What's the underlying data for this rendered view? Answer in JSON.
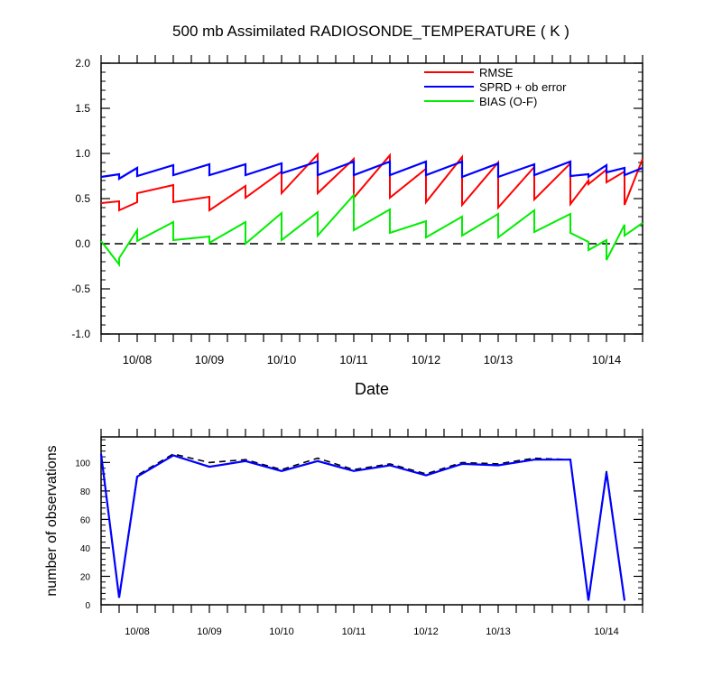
{
  "chart_data": [
    {
      "type": "line",
      "title": "500 mb Assimilated RADIOSONDE_TEMPERATURE ( K )",
      "xlabel": "Date",
      "ylabel": "",
      "ylim": [
        -1.0,
        2.0
      ],
      "yticks": [
        "-1.0",
        "-0.5",
        "0.0",
        "0.5",
        "1.0",
        "1.5",
        "2.0"
      ],
      "xticks": [
        "10/08",
        "10/09",
        "10/10",
        "10/11",
        "10/12",
        "10/13",
        "10/14"
      ],
      "zero_line": "dashed",
      "legend": [
        "RMSE",
        "SPRD + ob error",
        "BIAS (O-F)"
      ],
      "legend_position": "top-right",
      "colors": {
        "rmse": "#ff0000",
        "sprd": "#0000ff",
        "bias": "#00ee00"
      },
      "series": [
        {
          "name": "RMSE",
          "key": "rmse",
          "points": [
            [
              0.0,
              0.45
            ],
            [
              1.0,
              0.47
            ],
            [
              1.0,
              0.37
            ],
            [
              2.0,
              0.46
            ],
            [
              2.0,
              0.56
            ],
            [
              4.0,
              0.65
            ],
            [
              4.0,
              0.46
            ],
            [
              6.0,
              0.52
            ],
            [
              6.0,
              0.37
            ],
            [
              8.0,
              0.64
            ],
            [
              8.0,
              0.51
            ],
            [
              10.0,
              0.8
            ],
            [
              10.0,
              0.56
            ],
            [
              12.0,
              0.99
            ],
            [
              12.0,
              0.56
            ],
            [
              14.0,
              0.94
            ],
            [
              14.0,
              0.51
            ],
            [
              16.0,
              0.98
            ],
            [
              16.0,
              0.51
            ],
            [
              18.0,
              0.83
            ],
            [
              18.0,
              0.46
            ],
            [
              20.0,
              0.96
            ],
            [
              20.0,
              0.43
            ],
            [
              22.0,
              0.9
            ],
            [
              22.0,
              0.4
            ],
            [
              24.0,
              0.85
            ],
            [
              24.0,
              0.49
            ],
            [
              26.0,
              0.89
            ],
            [
              26.0,
              0.44
            ],
            [
              27.0,
              0.7
            ],
            [
              27.0,
              0.66
            ],
            [
              28.0,
              0.82
            ],
            [
              28.0,
              0.68
            ],
            [
              29.0,
              0.8
            ],
            [
              29.0,
              0.43
            ],
            [
              30.0,
              0.94
            ]
          ]
        },
        {
          "name": "SPRD + ob error",
          "key": "sprd",
          "points": [
            [
              0.0,
              0.74
            ],
            [
              1.0,
              0.77
            ],
            [
              1.0,
              0.72
            ],
            [
              2.0,
              0.84
            ],
            [
              2.0,
              0.75
            ],
            [
              4.0,
              0.87
            ],
            [
              4.0,
              0.76
            ],
            [
              6.0,
              0.88
            ],
            [
              6.0,
              0.76
            ],
            [
              8.0,
              0.88
            ],
            [
              8.0,
              0.76
            ],
            [
              10.0,
              0.89
            ],
            [
              10.0,
              0.78
            ],
            [
              12.0,
              0.91
            ],
            [
              12.0,
              0.76
            ],
            [
              14.0,
              0.91
            ],
            [
              14.0,
              0.76
            ],
            [
              16.0,
              0.91
            ],
            [
              16.0,
              0.76
            ],
            [
              18.0,
              0.91
            ],
            [
              18.0,
              0.76
            ],
            [
              20.0,
              0.91
            ],
            [
              20.0,
              0.74
            ],
            [
              22.0,
              0.89
            ],
            [
              22.0,
              0.74
            ],
            [
              24.0,
              0.88
            ],
            [
              24.0,
              0.76
            ],
            [
              26.0,
              0.91
            ],
            [
              26.0,
              0.75
            ],
            [
              27.0,
              0.77
            ],
            [
              27.0,
              0.74
            ],
            [
              28.0,
              0.87
            ],
            [
              28.0,
              0.79
            ],
            [
              29.0,
              0.84
            ],
            [
              29.0,
              0.76
            ],
            [
              30.0,
              0.84
            ]
          ]
        },
        {
          "name": "BIAS (O-F)",
          "key": "bias",
          "points": [
            [
              0.0,
              0.03
            ],
            [
              1.0,
              -0.23
            ],
            [
              1.0,
              -0.16
            ],
            [
              2.0,
              0.15
            ],
            [
              2.0,
              0.03
            ],
            [
              4.0,
              0.24
            ],
            [
              4.0,
              0.04
            ],
            [
              6.0,
              0.08
            ],
            [
              6.0,
              0.01
            ],
            [
              8.0,
              0.24
            ],
            [
              8.0,
              0.0
            ],
            [
              10.0,
              0.34
            ],
            [
              10.0,
              0.04
            ],
            [
              12.0,
              0.35
            ],
            [
              12.0,
              0.09
            ],
            [
              14.0,
              0.54
            ],
            [
              14.0,
              0.15
            ],
            [
              16.0,
              0.38
            ],
            [
              16.0,
              0.12
            ],
            [
              18.0,
              0.25
            ],
            [
              18.0,
              0.07
            ],
            [
              20.0,
              0.3
            ],
            [
              20.0,
              0.09
            ],
            [
              22.0,
              0.33
            ],
            [
              22.0,
              0.07
            ],
            [
              24.0,
              0.37
            ],
            [
              24.0,
              0.13
            ],
            [
              26.0,
              0.33
            ],
            [
              26.0,
              0.12
            ],
            [
              27.0,
              0.02
            ],
            [
              27.0,
              -0.07
            ],
            [
              28.0,
              0.04
            ],
            [
              28.0,
              -0.18
            ],
            [
              29.0,
              0.21
            ],
            [
              29.0,
              0.09
            ],
            [
              30.0,
              0.23
            ]
          ]
        }
      ]
    },
    {
      "type": "line",
      "title": "",
      "xlabel": "",
      "ylabel": "number of observations",
      "ylim": [
        0,
        118
      ],
      "yticks": [
        "0",
        "20",
        "40",
        "60",
        "80",
        "100"
      ],
      "xticks": [
        "10/08",
        "10/09",
        "10/10",
        "10/11",
        "10/12",
        "10/13",
        "10/14"
      ],
      "colors": {
        "assimilated": "#0000ff",
        "total": "#000000"
      },
      "series": [
        {
          "name": "assimilated",
          "key": "assim",
          "points": [
            [
              0.0,
              106
            ],
            [
              1.0,
              5
            ],
            [
              2.0,
              90
            ],
            [
              4.0,
              105
            ],
            [
              6.0,
              97
            ],
            [
              8.0,
              101
            ],
            [
              10.0,
              94
            ],
            [
              12.0,
              101
            ],
            [
              14.0,
              94
            ],
            [
              16.0,
              98
            ],
            [
              18.0,
              91
            ],
            [
              20.0,
              99
            ],
            [
              22.0,
              98
            ],
            [
              24.0,
              102
            ],
            [
              26.0,
              102
            ],
            [
              27.0,
              3
            ],
            [
              28.0,
              93
            ],
            [
              29.0,
              3
            ]
          ]
        },
        {
          "name": "total",
          "key": "total",
          "points": [
            [
              0.0,
              106
            ],
            [
              1.0,
              5
            ],
            [
              2.0,
              91
            ],
            [
              4.0,
              106
            ],
            [
              6.0,
              100
            ],
            [
              8.0,
              102
            ],
            [
              10.0,
              95
            ],
            [
              12.0,
              103
            ],
            [
              14.0,
              95
            ],
            [
              16.0,
              99
            ],
            [
              18.0,
              92
            ],
            [
              20.0,
              100
            ],
            [
              22.0,
              99
            ],
            [
              24.0,
              103
            ],
            [
              26.0,
              102
            ],
            [
              27.0,
              3
            ],
            [
              28.0,
              94
            ],
            [
              29.0,
              3
            ]
          ]
        }
      ]
    }
  ]
}
